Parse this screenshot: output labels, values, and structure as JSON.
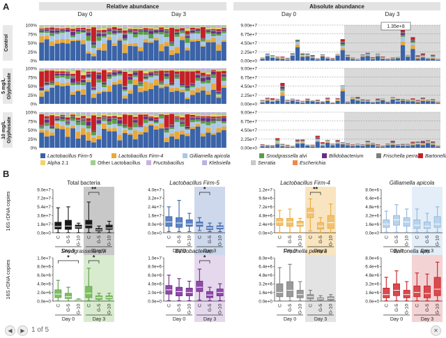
{
  "panel_a": {
    "letter": "A",
    "rel_header": "Relative abundance",
    "abs_header": "Absolute abundance",
    "day0": "Day 0",
    "day3": "Day 3",
    "rows": [
      "Control",
      "5 mg/L Glyphosate",
      "10 mg/L Glyphosate"
    ],
    "rel_ticks": [
      "0%",
      "25%",
      "50%",
      "75%",
      "100%"
    ],
    "abs_ticks": [
      "0.00e+0",
      "2.25e+7",
      "4.50e+7",
      "6.75e+7",
      "9.00e+7"
    ],
    "outlier_label": "1.35e+8"
  },
  "legend": [
    {
      "name": "Lactobacillus Firm-5",
      "color": "#3a63a8"
    },
    {
      "name": "Lactobacillus Firm-4",
      "color": "#e8a93a"
    },
    {
      "name": "Gilliamella apicola",
      "color": "#a9c8e6"
    },
    {
      "name": "Snodgrassella alvi",
      "color": "#5a9e46"
    },
    {
      "name": "Bifidobacterium",
      "color": "#6b2a86"
    },
    {
      "name": "Frischella perrara",
      "color": "#7d7d7d"
    },
    {
      "name": "Bartonella apis",
      "color": "#c42026"
    },
    {
      "name": "Alpha 2.1",
      "color": "#f2d36b"
    },
    {
      "name": "Other Lactobacillus",
      "color": "#9ecf8c"
    },
    {
      "name": "Fructobacillus",
      "color": "#c9b1d8"
    },
    {
      "name": "Klebsiella",
      "color": "#b9b4df"
    },
    {
      "name": "Serratia",
      "color": "#c8c8c8"
    },
    {
      "name": "Escherichia",
      "color": "#ec8a4a"
    }
  ],
  "chart_data": [
    {
      "type": "box",
      "panel": "B",
      "title": "Total bacteria",
      "title_italic": false,
      "color": "#1a1a1a",
      "fill": "#1a1a1a",
      "ylabel": "16S rDNA copies",
      "yticks": [
        "0.0e+0",
        "1.8e+7",
        "3.6e+7",
        "5.4e+7",
        "7.2e+7",
        "9.0e+7"
      ],
      "ylim": [
        0,
        90000000.0
      ],
      "categories": [
        "C",
        "G-5",
        "G-10",
        "C",
        "G-5",
        "G-10"
      ],
      "groups": [
        "Day 0",
        "Day 3"
      ],
      "shade": "#c8c8c8",
      "sig": [
        {
          "label": "**",
          "from": 3,
          "to": 4
        }
      ],
      "boxes": [
        [
          200000.0,
          8000000.0,
          13000000.0,
          22000000.0,
          52000000.0
        ],
        [
          200000.0,
          7000000.0,
          14000000.0,
          26000000.0,
          54000000.0
        ],
        [
          200000.0,
          9000000.0,
          12000000.0,
          16000000.0,
          20000000.0
        ],
        [
          400000.0,
          10000000.0,
          16000000.0,
          26000000.0,
          64000000.0
        ],
        [
          200000.0,
          4000000.0,
          6000000.0,
          9000000.0,
          14000000.0
        ],
        [
          200000.0,
          7000000.0,
          10000000.0,
          16000000.0,
          24000000.0
        ]
      ]
    },
    {
      "type": "box",
      "panel": "B",
      "title": "Lactobacillus Firm-5",
      "title_italic": true,
      "color": "#3a63a8",
      "fill": "#5d85c5",
      "ylabel": "",
      "yticks": [
        "0.0e+0",
        "8.0e+6",
        "1.6e+7",
        "2.4e+7",
        "3.2e+7",
        "4.0e+7"
      ],
      "ylim": [
        0,
        40000000.0
      ],
      "categories": [
        "C",
        "G-5",
        "G-10",
        "C",
        "G-5",
        "G-10"
      ],
      "groups": [
        "Day 0",
        "Day 3"
      ],
      "shade": "#cdd8ec",
      "sig": [
        {
          "label": "*",
          "from": 3,
          "to": 4
        }
      ],
      "boxes": [
        [
          1000000.0,
          6000000.0,
          10000000.0,
          15000000.0,
          24000000.0
        ],
        [
          1000000.0,
          5000000.0,
          9000000.0,
          14000000.0,
          30000000.0
        ],
        [
          1000000.0,
          6000000.0,
          8000000.0,
          12000000.0,
          18000000.0
        ],
        [
          2000000.0,
          6000000.0,
          8000000.0,
          10000000.0,
          14000000.0
        ],
        [
          1000000.0,
          3000000.0,
          4500000.0,
          6000000.0,
          9000000.0
        ],
        [
          1000000.0,
          3500000.0,
          5000000.0,
          6500000.0,
          9000000.0
        ]
      ]
    },
    {
      "type": "box",
      "panel": "B",
      "title": "Lactobacillus Firm-4",
      "title_italic": true,
      "color": "#e8a93a",
      "fill": "#f1c270",
      "ylabel": "",
      "yticks": [
        "0.0e+0",
        "2.4e+6",
        "4.8e+6",
        "7.2e+6",
        "9.6e+6",
        "1.2e+7"
      ],
      "ylim": [
        0,
        12000000.0
      ],
      "categories": [
        "C",
        "G-5",
        "G-10",
        "C",
        "G-5",
        "G-10"
      ],
      "groups": [
        "Day 0",
        "Day 3"
      ],
      "shade": "#f8e4bf",
      "sig": [
        {
          "label": "**",
          "from": 3,
          "to": 4
        }
      ],
      "boxes": [
        [
          100000.0,
          2000000.0,
          3000000.0,
          4000000.0,
          6200000.0
        ],
        [
          100000.0,
          1800000.0,
          3000000.0,
          4000000.0,
          6600000.0
        ],
        [
          100000.0,
          1800000.0,
          2400000.0,
          3200000.0,
          4000000.0
        ],
        [
          500000.0,
          4200000.0,
          5600000.0,
          6800000.0,
          9400000.0
        ],
        [
          100000.0,
          1000000.0,
          1800000.0,
          2800000.0,
          4200000.0
        ],
        [
          100000.0,
          1200000.0,
          2800000.0,
          4800000.0,
          8000000.0
        ]
      ]
    },
    {
      "type": "box",
      "panel": "B",
      "title": "Gilliamella apicola",
      "title_italic": true,
      "color": "#8fb6dc",
      "fill": "#b9d3ec",
      "ylabel": "",
      "yticks": [
        "0.0e+0",
        "1.6e+6",
        "3.2e+6",
        "4.8e+6",
        "6.4e+6",
        "8.0e+6"
      ],
      "ylim": [
        0,
        8000000.0
      ],
      "categories": [
        "C",
        "G-5",
        "G-10",
        "C",
        "G-5",
        "G-10"
      ],
      "groups": [
        "Day 0",
        "Day 3"
      ],
      "shade": "#e4eef8",
      "sig": [],
      "boxes": [
        [
          100000.0,
          1000000.0,
          1600000.0,
          2400000.0,
          4000000.0
        ],
        [
          100000.0,
          1400000.0,
          2400000.0,
          3200000.0,
          5200000.0
        ],
        [
          100000.0,
          1200000.0,
          2000000.0,
          2800000.0,
          4400000.0
        ],
        [
          100000.0,
          800000.0,
          1400000.0,
          2400000.0,
          4400000.0
        ],
        [
          100000.0,
          800000.0,
          1200000.0,
          2000000.0,
          3600000.0
        ],
        [
          100000.0,
          1000000.0,
          1600000.0,
          3000000.0,
          4800000.0
        ]
      ]
    },
    {
      "type": "box",
      "panel": "B",
      "title": "Snodgrassella alvi",
      "title_italic": true,
      "color": "#5a9e46",
      "fill": "#7fbf63",
      "ylabel": "16S rDNA copies",
      "yticks": [
        "0.0e+0",
        "2.0e+6",
        "4.0e+6",
        "6.0e+6",
        "8.0e+6",
        "1.0e+7"
      ],
      "ylim": [
        0,
        10000000.0
      ],
      "categories": [
        "C",
        "G-5",
        "G-10",
        "C",
        "G-5",
        "G-10"
      ],
      "groups": [
        "Day 0",
        "Day 3"
      ],
      "shade": "#d9ebcf",
      "sig": [
        {
          "label": "*",
          "from": 0,
          "to": 2
        },
        {
          "label": "*",
          "from": 3,
          "to": 4
        }
      ],
      "boxes": [
        [
          50000.0,
          800000.0,
          1600000.0,
          2600000.0,
          4800000.0
        ],
        [
          50000.0,
          600000.0,
          1000000.0,
          1800000.0,
          3200000.0
        ],
        [
          50000.0,
          100000.0,
          200000.0,
          300000.0,
          500000.0
        ],
        [
          100000.0,
          800000.0,
          1800000.0,
          3400000.0,
          7600000.0
        ],
        [
          50000.0,
          400000.0,
          800000.0,
          1200000.0,
          1800000.0
        ],
        [
          50000.0,
          500000.0,
          800000.0,
          1200000.0,
          1800000.0
        ]
      ]
    },
    {
      "type": "box",
      "panel": "B",
      "title": "Bifidobacterium",
      "title_italic": true,
      "color": "#6b2a86",
      "fill": "#8e4aa8",
      "ylabel": "",
      "yticks": [
        "0.0e+0",
        "2.0e+6",
        "4.0e+6",
        "6.0e+6",
        "8.0e+6",
        "1.0e+7"
      ],
      "ylim": [
        0,
        10000000.0
      ],
      "categories": [
        "C",
        "G-5",
        "G-10",
        "C",
        "G-5",
        "G-10"
      ],
      "groups": [
        "Day 0",
        "Day 3"
      ],
      "shade": "#e5d7ec",
      "sig": [
        {
          "label": "*",
          "from": 3,
          "to": 4
        }
      ],
      "boxes": [
        [
          100000.0,
          1600000.0,
          2600000.0,
          3600000.0,
          6000000.0
        ],
        [
          100000.0,
          1200000.0,
          2200000.0,
          3200000.0,
          5200000.0
        ],
        [
          100000.0,
          1200000.0,
          2000000.0,
          3000000.0,
          4600000.0
        ],
        [
          200000.0,
          2200000.0,
          3200000.0,
          4600000.0,
          7400000.0
        ],
        [
          100000.0,
          800000.0,
          1400000.0,
          2200000.0,
          3200000.0
        ],
        [
          100000.0,
          1200000.0,
          2000000.0,
          2800000.0,
          4000000.0
        ]
      ]
    },
    {
      "type": "box",
      "panel": "B",
      "title": "Frischella perrara",
      "title_italic": true,
      "color": "#7d7d7d",
      "fill": "#9a9a9a",
      "ylabel": "",
      "yticks": [
        "0.0e+0",
        "1.6e+6",
        "3.2e+6",
        "4.8e+6",
        "6.4e+6",
        "8.0e+6"
      ],
      "ylim": [
        0,
        8000000.0
      ],
      "categories": [
        "C",
        "G-5",
        "G-10",
        "C",
        "G-5",
        "G-10"
      ],
      "groups": [
        "Day 0",
        "Day 3"
      ],
      "shade": "#e3e3e3",
      "sig": [],
      "boxes": [
        [
          50000.0,
          800000.0,
          1600000.0,
          3200000.0,
          6200000.0
        ],
        [
          50000.0,
          800000.0,
          2000000.0,
          3600000.0,
          6800000.0
        ],
        [
          50000.0,
          600000.0,
          1200000.0,
          2000000.0,
          3600000.0
        ],
        [
          50000.0,
          400000.0,
          800000.0,
          1200000.0,
          2000000.0
        ],
        [
          50000.0,
          200000.0,
          400000.0,
          600000.0,
          1000000.0
        ],
        [
          50000.0,
          200000.0,
          500000.0,
          800000.0,
          1200000.0
        ]
      ]
    },
    {
      "type": "box",
      "panel": "B",
      "title": "Bartonella apis",
      "title_italic": true,
      "color": "#c42026",
      "fill": "#d84a4e",
      "ylabel": "",
      "yticks": [
        "0.0e+0",
        "1.6e+6",
        "3.2e+6",
        "4.8e+6",
        "6.4e+6",
        "8.0e+6"
      ],
      "ylim": [
        0,
        8000000.0
      ],
      "categories": [
        "C",
        "G-5",
        "G-10",
        "C",
        "G-5",
        "G-10"
      ],
      "groups": [
        "Day 0",
        "Day 3"
      ],
      "shade": "#f3d3d4",
      "sig": [],
      "boxes": [
        [
          50000.0,
          600000.0,
          1200000.0,
          2400000.0,
          4400000.0
        ],
        [
          50000.0,
          1000000.0,
          2000000.0,
          3200000.0,
          5600000.0
        ],
        [
          50000.0,
          600000.0,
          1200000.0,
          2000000.0,
          3600000.0
        ],
        [
          50000.0,
          800000.0,
          1600000.0,
          2800000.0,
          5200000.0
        ],
        [
          50000.0,
          600000.0,
          1400000.0,
          2800000.0,
          5000000.0
        ],
        [
          50000.0,
          1000000.0,
          2200000.0,
          4400000.0,
          7200000.0
        ]
      ]
    }
  ],
  "viewer": {
    "page": "1 of 5",
    "prev": "◀",
    "next": "▶",
    "close": "✕"
  }
}
